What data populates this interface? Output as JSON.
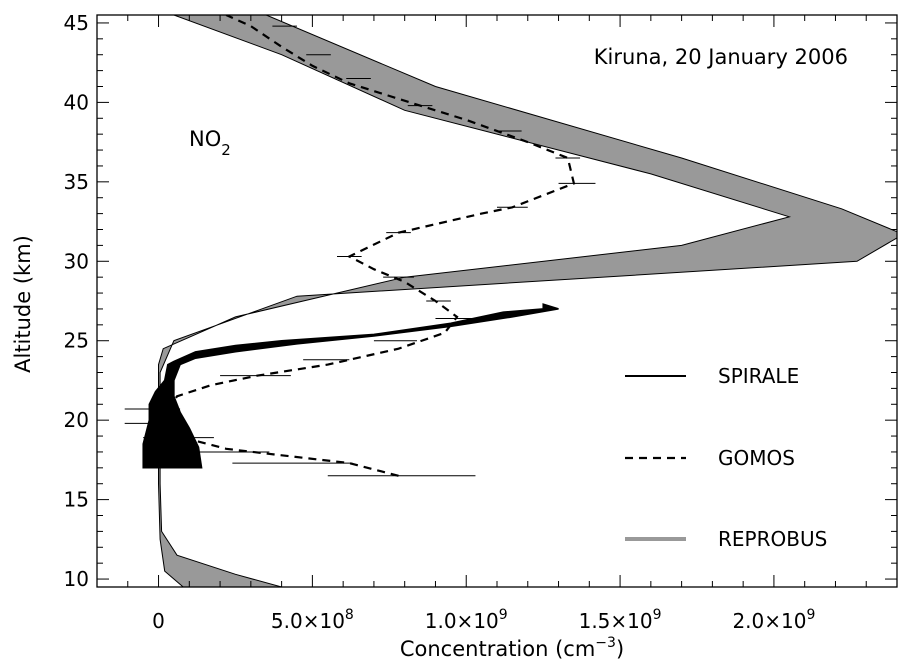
{
  "chart_data": {
    "type": "line",
    "title": "Kiruna, 20 January 2006",
    "species_label": "NO",
    "species_subscript": "2",
    "xlabel_text": "Concentration (cm",
    "xlabel_exponent": "−3",
    "xlabel_close": ")",
    "ylabel": "Altitude (km)",
    "xlim": [
      -200000000.0,
      2400000000.0
    ],
    "ylim": [
      9.5,
      45.5
    ],
    "x_ticks": [
      {
        "value": 0,
        "mantissa": "0",
        "exponent": ""
      },
      {
        "value": 500000000.0,
        "mantissa": "5.0×10",
        "exponent": "8"
      },
      {
        "value": 1000000000.0,
        "mantissa": "1.0×10",
        "exponent": "9"
      },
      {
        "value": 1500000000.0,
        "mantissa": "1.5×10",
        "exponent": "9"
      },
      {
        "value": 2000000000.0,
        "mantissa": "2.0×10",
        "exponent": "9"
      }
    ],
    "x_minor_step": 100000000.0,
    "y_ticks": [
      10,
      15,
      20,
      25,
      30,
      35,
      40,
      45
    ],
    "y_minor_step": 1,
    "legend": [
      {
        "name": "SPIRALE",
        "style": "solid",
        "color": "#000000"
      },
      {
        "name": "GOMOS",
        "style": "dashed",
        "color": "#000000"
      },
      {
        "name": "REPROBUS",
        "style": "band",
        "color": "#999999"
      }
    ],
    "legend_position": "lower-right",
    "series": [
      {
        "name": "REPROBUS",
        "kind": "band",
        "color": "#999999",
        "left": [
          [
            80000000.0,
            9.5
          ],
          [
            20000000.0,
            10.5
          ],
          [
            5000000.0,
            12.5
          ],
          [
            0,
            16
          ],
          [
            0,
            23.5
          ],
          [
            15000000.0,
            24.5
          ],
          [
            250000000.0,
            26.5
          ],
          [
            800000000.0,
            29
          ],
          [
            1700000000.0,
            31
          ],
          [
            2050000000.0,
            32.8
          ],
          [
            1600000000.0,
            35.5
          ],
          [
            800000000.0,
            39.5
          ],
          [
            400000000.0,
            43
          ],
          [
            50000000.0,
            45.5
          ]
        ],
        "right": [
          [
            400000000.0,
            9.5
          ],
          [
            250000000.0,
            10.3
          ],
          [
            60000000.0,
            11.5
          ],
          [
            10000000.0,
            13
          ],
          [
            5000000.0,
            16
          ],
          [
            5000000.0,
            23
          ],
          [
            50000000.0,
            25
          ],
          [
            450000000.0,
            27.8
          ],
          [
            2270000000.0,
            30
          ],
          [
            2420000000.0,
            31.7
          ],
          [
            2220000000.0,
            33.3
          ],
          [
            1700000000.0,
            36.5
          ],
          [
            900000000.0,
            41
          ],
          [
            350000000.0,
            45.5
          ]
        ]
      },
      {
        "name": "GOMOS",
        "kind": "dashed",
        "color": "#000000",
        "points": [
          [
            780000000.0,
            16.5
          ],
          [
            620000000.0,
            17.3
          ],
          [
            350000000.0,
            17.9
          ],
          [
            220000000.0,
            18.2
          ],
          [
            100000000.0,
            18.8
          ],
          [
            40000000.0,
            19.7
          ],
          [
            30000000.0,
            20.6
          ],
          [
            60000000.0,
            21.5
          ],
          [
            170000000.0,
            22.2
          ],
          [
            320000000.0,
            22.8
          ],
          [
            550000000.0,
            23.5
          ],
          [
            780000000.0,
            24.5
          ],
          [
            930000000.0,
            25.5
          ],
          [
            970000000.0,
            26.5
          ],
          [
            900000000.0,
            27.5
          ],
          [
            800000000.0,
            28.7
          ],
          [
            700000000.0,
            29.5
          ],
          [
            620000000.0,
            30.3
          ],
          [
            780000000.0,
            31.8
          ],
          [
            1050000000.0,
            33.0
          ],
          [
            1150000000.0,
            33.4
          ],
          [
            1350000000.0,
            34.9
          ],
          [
            1330000000.0,
            36.5
          ],
          [
            1200000000.0,
            37.5
          ],
          [
            1000000000.0,
            38.9
          ],
          [
            850000000.0,
            39.8
          ],
          [
            620000000.0,
            41.2
          ],
          [
            500000000.0,
            42.3
          ],
          [
            400000000.0,
            43.5
          ],
          [
            300000000.0,
            44.8
          ],
          [
            220000000.0,
            45.5
          ]
        ]
      },
      {
        "name": "SPIRALE",
        "kind": "solid",
        "color": "#000000",
        "left": [
          [
            -50000000.0,
            17.0
          ],
          [
            -50000000.0,
            18.5
          ],
          [
            -30000000.0,
            20
          ],
          [
            -30000000.0,
            21
          ],
          [
            -10000000.0,
            21.8
          ],
          [
            20000000.0,
            22.5
          ],
          [
            30000000.0,
            23.5
          ],
          [
            50000000.0,
            23.7
          ],
          [
            120000000.0,
            24.3
          ],
          [
            250000000.0,
            24.7
          ],
          [
            400000000.0,
            25.0
          ],
          [
            700000000.0,
            25.4
          ],
          [
            950000000.0,
            26.1
          ],
          [
            1120000000.0,
            26.8
          ],
          [
            1250000000.0,
            27.0
          ]
        ],
        "right": [
          [
            140000000.0,
            17.0
          ],
          [
            130000000.0,
            18.3
          ],
          [
            100000000.0,
            19.5
          ],
          [
            70000000.0,
            20.5
          ],
          [
            50000000.0,
            21.5
          ],
          [
            50000000.0,
            22.5
          ],
          [
            70000000.0,
            23.5
          ],
          [
            120000000.0,
            23.9
          ],
          [
            250000000.0,
            24.3
          ],
          [
            450000000.0,
            24.8
          ],
          [
            700000000.0,
            25.3
          ],
          [
            950000000.0,
            25.9
          ],
          [
            1150000000.0,
            26.5
          ],
          [
            1300000000.0,
            27.0
          ],
          [
            1250000000.0,
            27.3
          ]
        ]
      }
    ],
    "gomos_error_bars": [
      {
        "y": 16.5,
        "lo": 550000000.0,
        "hi": 1030000000.0
      },
      {
        "y": 17.3,
        "lo": 240000000.0,
        "hi": 630000000.0
      },
      {
        "y": 18.0,
        "lo": 110000000.0,
        "hi": 360000000.0
      },
      {
        "y": 18.9,
        "lo": -50000000.0,
        "hi": 180000000.0
      },
      {
        "y": 19.8,
        "lo": -110000000.0,
        "hi": 70000000.0
      },
      {
        "y": 20.7,
        "lo": -110000000.0,
        "hi": 70000000.0
      },
      {
        "y": 22.8,
        "lo": 200000000.0,
        "hi": 430000000.0
      },
      {
        "y": 23.8,
        "lo": 470000000.0,
        "hi": 620000000.0
      },
      {
        "y": 25.0,
        "lo": 700000000.0,
        "hi": 840000000.0
      },
      {
        "y": 26.4,
        "lo": 900000000.0,
        "hi": 1030000000.0
      },
      {
        "y": 27.5,
        "lo": 870000000.0,
        "hi": 950000000.0
      },
      {
        "y": 29.0,
        "lo": 730000000.0,
        "hi": 830000000.0
      },
      {
        "y": 30.3,
        "lo": 580000000.0,
        "hi": 660000000.0
      },
      {
        "y": 31.8,
        "lo": 740000000.0,
        "hi": 820000000.0
      },
      {
        "y": 33.4,
        "lo": 1100000000.0,
        "hi": 1200000000.0
      },
      {
        "y": 34.9,
        "lo": 1300000000.0,
        "hi": 1420000000.0
      },
      {
        "y": 36.5,
        "lo": 1290000000.0,
        "hi": 1370000000.0
      },
      {
        "y": 38.2,
        "lo": 1100000000.0,
        "hi": 1180000000.0
      },
      {
        "y": 39.8,
        "lo": 810000000.0,
        "hi": 890000000.0
      },
      {
        "y": 41.5,
        "lo": 610000000.0,
        "hi": 690000000.0
      },
      {
        "y": 43.0,
        "lo": 480000000.0,
        "hi": 560000000.0
      },
      {
        "y": 44.8,
        "lo": 370000000.0,
        "hi": 450000000.0
      }
    ]
  }
}
